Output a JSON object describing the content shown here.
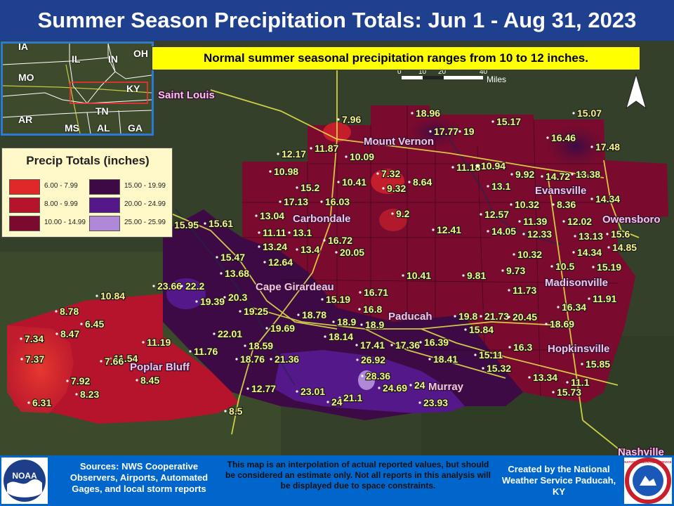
{
  "title": "Summer Season Precipitation Totals: Jun 1 - Aug 31, 2023",
  "normal_note": "Normal summer seasonal precipitation ranges from 10 to 12 inches.",
  "colors": {
    "title_bg": "#1f3f8f",
    "footer_bg": "#0066cc",
    "note_bg": "#ffff00",
    "legend_bg": "#fff8c8",
    "station_text": "#f4f48a",
    "city_text": "#f1c6ea",
    "inset_border": "#2b7bd6"
  },
  "legend": {
    "title": "Precip Totals (inches)",
    "items": [
      {
        "label": "6.00 - 7.99",
        "color": "#e02828"
      },
      {
        "label": "8.00 - 9.99",
        "color": "#b5142c"
      },
      {
        "label": "10.00 - 14.99",
        "color": "#7a0a2e"
      },
      {
        "label": "15.00 - 19.99",
        "color": "#3e0a45"
      },
      {
        "label": "20.00 - 24.99",
        "color": "#55188a"
      },
      {
        "label": "25.00 - 25.99",
        "color": "#b088d8"
      }
    ]
  },
  "inset_map": {
    "states": [
      "IA",
      "IL",
      "IN",
      "OH",
      "MO",
      "KY",
      "AR",
      "TN",
      "MS",
      "AL",
      "GA"
    ]
  },
  "scale_bar": {
    "ticks": [
      "0",
      "10",
      "20",
      "40"
    ],
    "unit": "Miles"
  },
  "north_arrow_icon": "north-arrow-icon",
  "cities": [
    {
      "name": "Saint Louis"
    },
    {
      "name": "Mount Vernon"
    },
    {
      "name": "Evansville"
    },
    {
      "name": "Carbondale"
    },
    {
      "name": "Owensboro"
    },
    {
      "name": "Cape Girardeau"
    },
    {
      "name": "Madisonville"
    },
    {
      "name": "Paducah"
    },
    {
      "name": "Hopkinsville"
    },
    {
      "name": "Poplar Bluff"
    },
    {
      "name": "Murray"
    },
    {
      "name": "Nashville"
    }
  ],
  "stations": [
    "7.96",
    "18.96",
    "15.17",
    "15.07",
    "17.77",
    "19",
    "11.87",
    "12.17",
    "10.09",
    "16.46",
    "17.48",
    "11.18",
    "10.94",
    "9.92",
    "14.72",
    "13.38",
    "10.98",
    "7.32",
    "10.41",
    "8.64",
    "9.32",
    "13.1",
    "15.2",
    "17.13",
    "16.03",
    "10.32",
    "8.36",
    "14.34",
    "12.57",
    "11.39",
    "12.02",
    "15.95",
    "15.61",
    "13.04",
    "9.2",
    "11.11",
    "13.1",
    "14.05",
    "12.33",
    "13.13",
    "15.6",
    "12.41",
    "13.24",
    "13.4",
    "16.72",
    "14.34",
    "14.85",
    "12.64",
    "20.05",
    "10.32",
    "15.47",
    "10.5",
    "15.19",
    "13.68",
    "10.41",
    "9.81",
    "9.73",
    "23.66",
    "22.2",
    "11.73",
    "10.84",
    "19.39",
    "20.3",
    "16.71",
    "11.91",
    "19.25",
    "15.19",
    "16.8",
    "16.34",
    "8.78",
    "6.45",
    "18.78",
    "18.9",
    "18.9",
    "19.8",
    "21.73",
    "20.45",
    "18.69",
    "19.69",
    "15.84",
    "7.34",
    "8.47",
    "22.01",
    "18.14",
    "11.54",
    "11.19",
    "17.41",
    "17.36",
    "16.39",
    "18.59",
    "16.3",
    "11.76",
    "18.41",
    "15.11",
    "7.37",
    "7.66",
    "18.76",
    "21.36",
    "26.92",
    "15.32",
    "15.85",
    "28.36",
    "13.34",
    "11.1",
    "8.45",
    "7.92",
    "24.69",
    "24",
    "12.77",
    "23.01",
    "8.23",
    "15.73",
    "21.1",
    "24",
    "23.93",
    "6.31",
    "8.5"
  ],
  "footer": {
    "sources": "Sources: NWS Cooperative Observers, Airports, Automated Gages, and local storm reports",
    "disclaimer": "This map is an interpolation of actual reported values, but should be considered an estimate only. Not all reports in this analysis will be displayed due to space constraints.",
    "created_by": "Created by the National Weather Service Paducah, KY"
  },
  "logos": {
    "left": {
      "text": "NOAA"
    },
    "right": {
      "text": "NATIONAL WEATHER SERVICE"
    }
  }
}
